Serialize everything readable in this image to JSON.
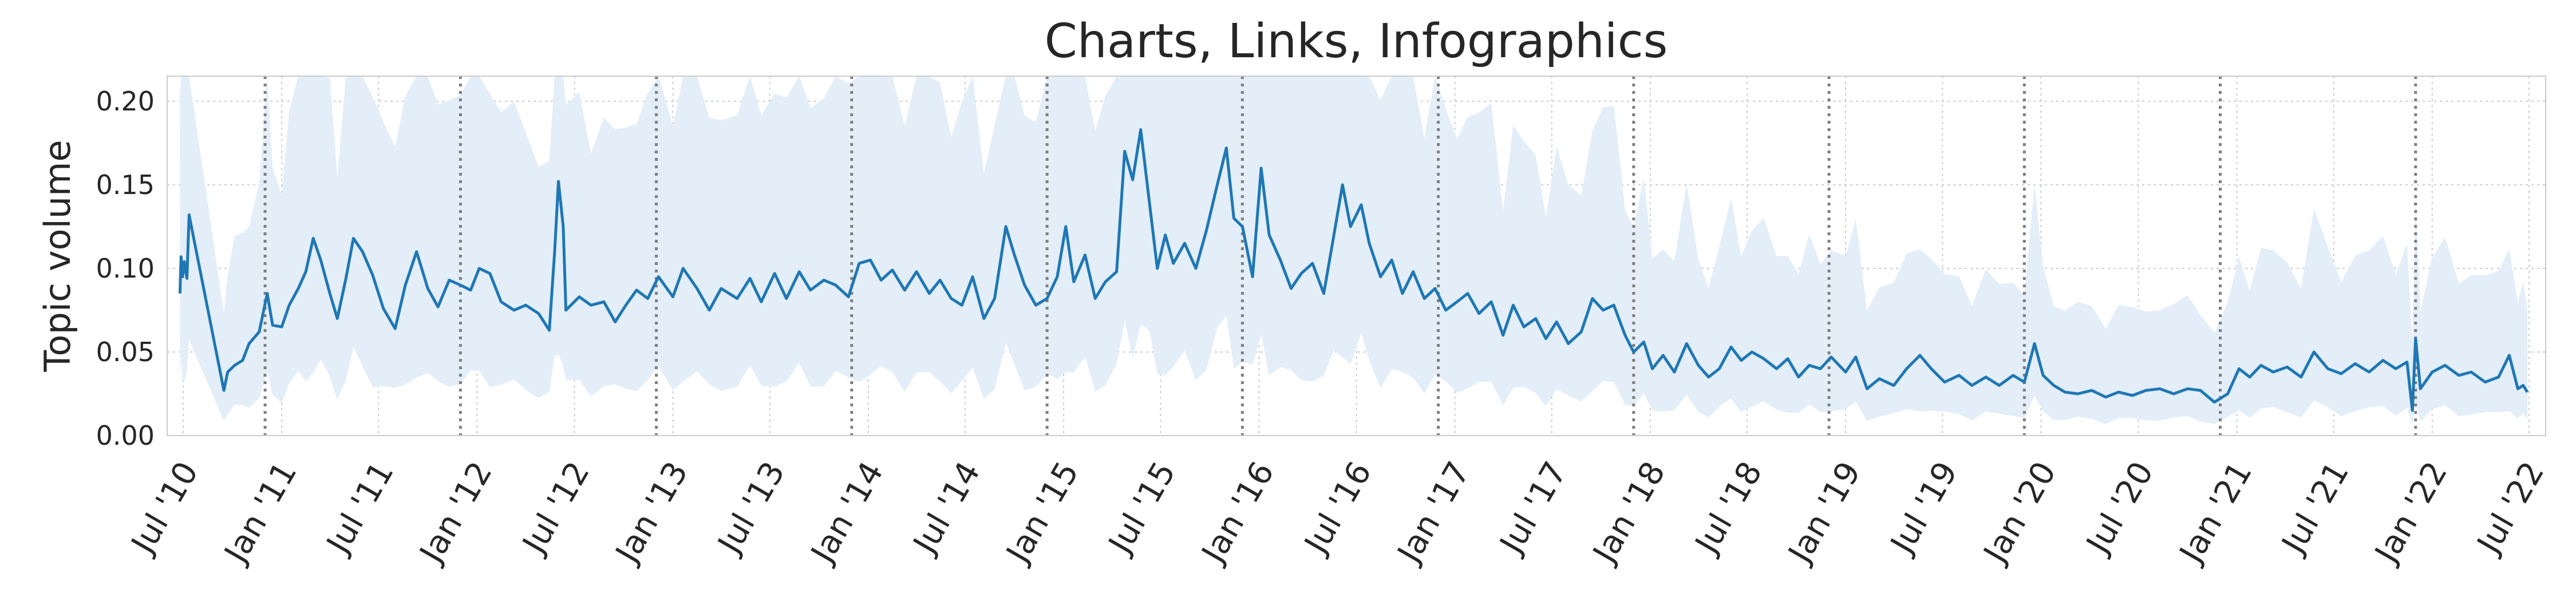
{
  "chart_data": {
    "type": "line",
    "title": "Charts, Links, Infographics",
    "ylabel": "Topic volume",
    "xlabel": "",
    "ylim": [
      0,
      0.215
    ],
    "xlim": [
      "2010-06-01",
      "2022-08-01"
    ],
    "yticks": [
      {
        "value": 0.0,
        "label": "0.00"
      },
      {
        "value": 0.05,
        "label": "0.05"
      },
      {
        "value": 0.1,
        "label": "0.10"
      },
      {
        "value": 0.15,
        "label": "0.15"
      },
      {
        "value": 0.2,
        "label": "0.20"
      }
    ],
    "xticks": [
      {
        "date": "2010-07-01",
        "label": "Jul '10"
      },
      {
        "date": "2011-01-01",
        "label": "Jan '11"
      },
      {
        "date": "2011-07-01",
        "label": "Jul '11"
      },
      {
        "date": "2012-01-01",
        "label": "Jan '12"
      },
      {
        "date": "2012-07-01",
        "label": "Jul '12"
      },
      {
        "date": "2013-01-01",
        "label": "Jan '13"
      },
      {
        "date": "2013-07-01",
        "label": "Jul '13"
      },
      {
        "date": "2014-01-01",
        "label": "Jan '14"
      },
      {
        "date": "2014-07-01",
        "label": "Jul '14"
      },
      {
        "date": "2015-01-01",
        "label": "Jan '15"
      },
      {
        "date": "2015-07-01",
        "label": "Jul '15"
      },
      {
        "date": "2016-01-01",
        "label": "Jan '16"
      },
      {
        "date": "2016-07-01",
        "label": "Jul '16"
      },
      {
        "date": "2017-01-01",
        "label": "Jan '17"
      },
      {
        "date": "2017-07-01",
        "label": "Jul '17"
      },
      {
        "date": "2018-01-01",
        "label": "Jan '18"
      },
      {
        "date": "2018-07-01",
        "label": "Jul '18"
      },
      {
        "date": "2019-01-01",
        "label": "Jan '19"
      },
      {
        "date": "2019-07-01",
        "label": "Jul '19"
      },
      {
        "date": "2020-01-01",
        "label": "Jan '20"
      },
      {
        "date": "2020-07-01",
        "label": "Jul '20"
      },
      {
        "date": "2021-01-01",
        "label": "Jan '21"
      },
      {
        "date": "2021-07-01",
        "label": "Jul '21"
      },
      {
        "date": "2022-01-01",
        "label": "Jan '22"
      },
      {
        "date": "2022-07-01",
        "label": "Jul '22"
      }
    ],
    "vlines": [
      "2010-12-01",
      "2011-12-01",
      "2012-12-01",
      "2013-12-01",
      "2014-12-01",
      "2015-12-01",
      "2016-12-01",
      "2017-12-01",
      "2018-12-01",
      "2019-12-01",
      "2020-12-01",
      "2021-12-01"
    ],
    "grid": true,
    "colors": {
      "line": "#1f77b4",
      "band": "#e3eef8",
      "vline": "#7f7f7f",
      "grid": "#c9ccd1",
      "spine": "#cccccc"
    },
    "series": [
      {
        "type": "line",
        "points": [
          [
            "2010-06-25",
            0.085
          ],
          [
            "2010-06-27",
            0.107
          ],
          [
            "2010-06-30",
            0.095
          ],
          [
            "2010-07-03",
            0.104
          ],
          [
            "2010-07-08",
            0.094
          ],
          [
            "2010-07-12",
            0.132
          ],
          [
            "2010-09-15",
            0.027
          ],
          [
            "2010-09-22",
            0.038
          ],
          [
            "2010-10-05",
            0.042
          ],
          [
            "2010-10-20",
            0.045
          ],
          [
            "2010-11-01",
            0.055
          ],
          [
            "2010-11-20",
            0.062
          ],
          [
            "2010-12-05",
            0.085
          ],
          [
            "2010-12-15",
            0.066
          ],
          [
            "2011-01-01",
            0.065
          ],
          [
            "2011-01-15",
            0.078
          ],
          [
            "2011-02-01",
            0.088
          ],
          [
            "2011-02-15",
            0.098
          ],
          [
            "2011-03-01",
            0.118
          ],
          [
            "2011-03-15",
            0.105
          ],
          [
            "2011-04-01",
            0.085
          ],
          [
            "2011-04-15",
            0.07
          ],
          [
            "2011-05-01",
            0.094
          ],
          [
            "2011-05-15",
            0.118
          ],
          [
            "2011-06-01",
            0.11
          ],
          [
            "2011-06-20",
            0.096
          ],
          [
            "2011-07-10",
            0.076
          ],
          [
            "2011-08-01",
            0.064
          ],
          [
            "2011-08-20",
            0.09
          ],
          [
            "2011-09-10",
            0.11
          ],
          [
            "2011-10-01",
            0.088
          ],
          [
            "2011-10-20",
            0.077
          ],
          [
            "2011-11-10",
            0.093
          ],
          [
            "2011-12-01",
            0.09
          ],
          [
            "2011-12-20",
            0.087
          ],
          [
            "2012-01-05",
            0.1
          ],
          [
            "2012-01-25",
            0.097
          ],
          [
            "2012-02-15",
            0.08
          ],
          [
            "2012-03-10",
            0.075
          ],
          [
            "2012-04-01",
            0.078
          ],
          [
            "2012-04-25",
            0.073
          ],
          [
            "2012-05-15",
            0.063
          ],
          [
            "2012-05-25",
            0.11
          ],
          [
            "2012-06-01",
            0.152
          ],
          [
            "2012-06-10",
            0.125
          ],
          [
            "2012-06-15",
            0.075
          ],
          [
            "2012-07-10",
            0.083
          ],
          [
            "2012-08-01",
            0.078
          ],
          [
            "2012-08-25",
            0.08
          ],
          [
            "2012-09-15",
            0.068
          ],
          [
            "2012-10-05",
            0.078
          ],
          [
            "2012-10-25",
            0.087
          ],
          [
            "2012-11-15",
            0.082
          ],
          [
            "2012-12-05",
            0.095
          ],
          [
            "2013-01-01",
            0.083
          ],
          [
            "2013-01-20",
            0.1
          ],
          [
            "2013-02-15",
            0.088
          ],
          [
            "2013-03-10",
            0.075
          ],
          [
            "2013-04-01",
            0.088
          ],
          [
            "2013-05-01",
            0.082
          ],
          [
            "2013-05-25",
            0.094
          ],
          [
            "2013-06-15",
            0.08
          ],
          [
            "2013-07-10",
            0.097
          ],
          [
            "2013-08-01",
            0.082
          ],
          [
            "2013-08-25",
            0.098
          ],
          [
            "2013-09-15",
            0.087
          ],
          [
            "2013-10-10",
            0.093
          ],
          [
            "2013-11-01",
            0.09
          ],
          [
            "2013-11-25",
            0.083
          ],
          [
            "2013-12-15",
            0.103
          ],
          [
            "2014-01-05",
            0.105
          ],
          [
            "2014-01-25",
            0.093
          ],
          [
            "2014-02-15",
            0.099
          ],
          [
            "2014-03-10",
            0.087
          ],
          [
            "2014-04-01",
            0.098
          ],
          [
            "2014-04-25",
            0.085
          ],
          [
            "2014-05-15",
            0.093
          ],
          [
            "2014-06-05",
            0.082
          ],
          [
            "2014-06-25",
            0.078
          ],
          [
            "2014-07-15",
            0.095
          ],
          [
            "2014-08-05",
            0.07
          ],
          [
            "2014-08-25",
            0.082
          ],
          [
            "2014-09-15",
            0.125
          ],
          [
            "2014-10-01",
            0.108
          ],
          [
            "2014-10-20",
            0.09
          ],
          [
            "2014-11-10",
            0.078
          ],
          [
            "2014-12-01",
            0.082
          ],
          [
            "2014-12-20",
            0.095
          ],
          [
            "2015-01-05",
            0.125
          ],
          [
            "2015-01-20",
            0.092
          ],
          [
            "2015-02-10",
            0.108
          ],
          [
            "2015-03-01",
            0.082
          ],
          [
            "2015-03-20",
            0.092
          ],
          [
            "2015-04-10",
            0.098
          ],
          [
            "2015-04-25",
            0.17
          ],
          [
            "2015-05-10",
            0.153
          ],
          [
            "2015-05-25",
            0.183
          ],
          [
            "2015-06-10",
            0.14
          ],
          [
            "2015-06-25",
            0.1
          ],
          [
            "2015-07-10",
            0.12
          ],
          [
            "2015-07-25",
            0.103
          ],
          [
            "2015-08-15",
            0.115
          ],
          [
            "2015-09-05",
            0.1
          ],
          [
            "2015-09-25",
            0.123
          ],
          [
            "2015-10-15",
            0.15
          ],
          [
            "2015-11-01",
            0.172
          ],
          [
            "2015-11-15",
            0.13
          ],
          [
            "2015-12-01",
            0.125
          ],
          [
            "2015-12-20",
            0.095
          ],
          [
            "2016-01-05",
            0.16
          ],
          [
            "2016-01-20",
            0.12
          ],
          [
            "2016-02-10",
            0.105
          ],
          [
            "2016-03-01",
            0.088
          ],
          [
            "2016-03-20",
            0.097
          ],
          [
            "2016-04-10",
            0.103
          ],
          [
            "2016-05-01",
            0.085
          ],
          [
            "2016-05-20",
            0.12
          ],
          [
            "2016-06-05",
            0.15
          ],
          [
            "2016-06-20",
            0.125
          ],
          [
            "2016-07-10",
            0.138
          ],
          [
            "2016-07-25",
            0.115
          ],
          [
            "2016-08-15",
            0.095
          ],
          [
            "2016-09-05",
            0.105
          ],
          [
            "2016-09-25",
            0.085
          ],
          [
            "2016-10-15",
            0.098
          ],
          [
            "2016-11-05",
            0.082
          ],
          [
            "2016-11-25",
            0.088
          ],
          [
            "2016-12-15",
            0.075
          ],
          [
            "2017-01-05",
            0.08
          ],
          [
            "2017-01-25",
            0.085
          ],
          [
            "2017-02-15",
            0.073
          ],
          [
            "2017-03-10",
            0.08
          ],
          [
            "2017-04-01",
            0.06
          ],
          [
            "2017-04-20",
            0.078
          ],
          [
            "2017-05-10",
            0.065
          ],
          [
            "2017-06-01",
            0.07
          ],
          [
            "2017-06-20",
            0.058
          ],
          [
            "2017-07-10",
            0.068
          ],
          [
            "2017-08-01",
            0.055
          ],
          [
            "2017-08-25",
            0.062
          ],
          [
            "2017-09-15",
            0.082
          ],
          [
            "2017-10-05",
            0.075
          ],
          [
            "2017-10-25",
            0.078
          ],
          [
            "2017-11-15",
            0.06
          ],
          [
            "2017-12-01",
            0.05
          ],
          [
            "2017-12-20",
            0.056
          ],
          [
            "2018-01-05",
            0.04
          ],
          [
            "2018-01-25",
            0.048
          ],
          [
            "2018-02-15",
            0.038
          ],
          [
            "2018-03-10",
            0.055
          ],
          [
            "2018-04-01",
            0.042
          ],
          [
            "2018-04-20",
            0.035
          ],
          [
            "2018-05-10",
            0.04
          ],
          [
            "2018-06-01",
            0.053
          ],
          [
            "2018-06-20",
            0.045
          ],
          [
            "2018-07-10",
            0.05
          ],
          [
            "2018-08-01",
            0.046
          ],
          [
            "2018-08-25",
            0.04
          ],
          [
            "2018-09-15",
            0.046
          ],
          [
            "2018-10-05",
            0.035
          ],
          [
            "2018-10-25",
            0.042
          ],
          [
            "2018-11-15",
            0.04
          ],
          [
            "2018-12-05",
            0.047
          ],
          [
            "2019-01-01",
            0.038
          ],
          [
            "2019-01-20",
            0.047
          ],
          [
            "2019-02-10",
            0.028
          ],
          [
            "2019-03-05",
            0.034
          ],
          [
            "2019-04-01",
            0.03
          ],
          [
            "2019-04-25",
            0.04
          ],
          [
            "2019-05-20",
            0.048
          ],
          [
            "2019-06-10",
            0.04
          ],
          [
            "2019-07-05",
            0.032
          ],
          [
            "2019-08-01",
            0.036
          ],
          [
            "2019-08-25",
            0.03
          ],
          [
            "2019-09-20",
            0.035
          ],
          [
            "2019-10-15",
            0.03
          ],
          [
            "2019-11-10",
            0.036
          ],
          [
            "2019-12-01",
            0.032
          ],
          [
            "2019-12-20",
            0.055
          ],
          [
            "2020-01-05",
            0.036
          ],
          [
            "2020-01-25",
            0.03
          ],
          [
            "2020-02-15",
            0.026
          ],
          [
            "2020-03-10",
            0.025
          ],
          [
            "2020-04-05",
            0.027
          ],
          [
            "2020-05-01",
            0.023
          ],
          [
            "2020-05-25",
            0.026
          ],
          [
            "2020-06-20",
            0.024
          ],
          [
            "2020-07-15",
            0.027
          ],
          [
            "2020-08-10",
            0.028
          ],
          [
            "2020-09-05",
            0.025
          ],
          [
            "2020-10-01",
            0.028
          ],
          [
            "2020-10-25",
            0.027
          ],
          [
            "2020-11-20",
            0.02
          ],
          [
            "2020-12-15",
            0.025
          ],
          [
            "2021-01-05",
            0.04
          ],
          [
            "2021-01-25",
            0.035
          ],
          [
            "2021-02-15",
            0.042
          ],
          [
            "2021-03-10",
            0.038
          ],
          [
            "2021-04-05",
            0.041
          ],
          [
            "2021-05-01",
            0.035
          ],
          [
            "2021-05-25",
            0.05
          ],
          [
            "2021-06-20",
            0.04
          ],
          [
            "2021-07-15",
            0.037
          ],
          [
            "2021-08-10",
            0.043
          ],
          [
            "2021-09-05",
            0.038
          ],
          [
            "2021-10-01",
            0.045
          ],
          [
            "2021-10-25",
            0.04
          ],
          [
            "2021-11-15",
            0.044
          ],
          [
            "2021-11-25",
            0.015
          ],
          [
            "2021-12-01",
            0.058
          ],
          [
            "2021-12-10",
            0.028
          ],
          [
            "2022-01-01",
            0.038
          ],
          [
            "2022-01-25",
            0.042
          ],
          [
            "2022-02-20",
            0.036
          ],
          [
            "2022-03-15",
            0.038
          ],
          [
            "2022-04-10",
            0.032
          ],
          [
            "2022-05-05",
            0.035
          ],
          [
            "2022-05-25",
            0.048
          ],
          [
            "2022-06-10",
            0.028
          ],
          [
            "2022-06-20",
            0.03
          ],
          [
            "2022-06-28",
            0.026
          ]
        ]
      }
    ]
  }
}
